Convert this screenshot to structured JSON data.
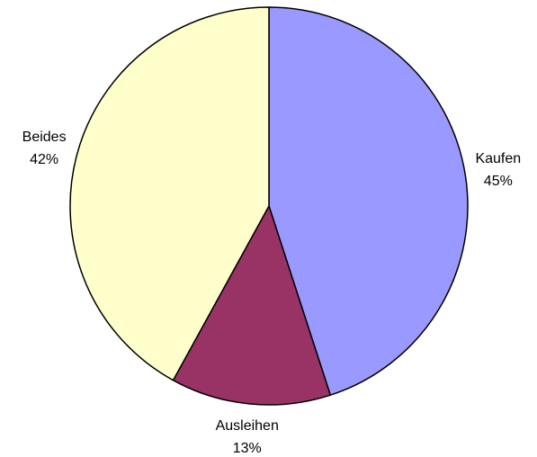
{
  "chart_data": {
    "type": "pie",
    "categories": [
      "Kaufen",
      "Ausleihen",
      "Beides"
    ],
    "values": [
      45,
      13,
      42
    ],
    "value_labels": [
      "45%",
      "13%",
      "42%"
    ],
    "colors": [
      "#9999ff",
      "#993366",
      "#ffffcc"
    ]
  }
}
